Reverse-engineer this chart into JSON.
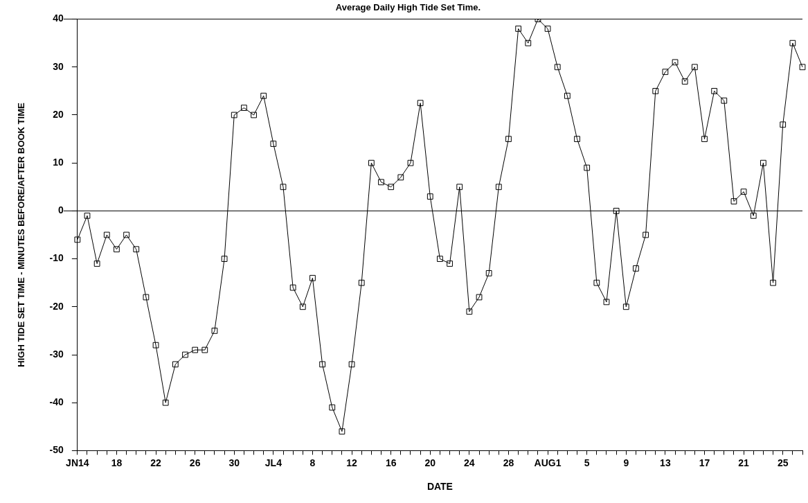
{
  "chart_data": {
    "type": "line",
    "title": "Average Daily High Tide Set Time.",
    "xlabel": "DATE",
    "ylabel": "HIGH TIDE SET TIME - MINUTES BEFORE/AFTER BOOK TIME",
    "categories": [
      "JN14",
      null,
      null,
      null,
      "18",
      null,
      null,
      null,
      "22",
      null,
      null,
      null,
      "26",
      null,
      null,
      null,
      "30",
      null,
      null,
      null,
      "JL4",
      null,
      null,
      null,
      "8",
      null,
      null,
      null,
      "12",
      null,
      null,
      null,
      "16",
      null,
      null,
      null,
      "20",
      null,
      null,
      null,
      "24",
      null,
      null,
      null,
      "28",
      null,
      null,
      null,
      "AUG1",
      null,
      null,
      null,
      "5",
      null,
      null,
      null,
      "9",
      null,
      null,
      null,
      "13",
      null,
      null,
      null,
      "17",
      null,
      null,
      null,
      "21",
      null,
      null,
      null,
      "25",
      null,
      null
    ],
    "series": [
      {
        "color": "#000000",
        "values": [
          -6,
          -1,
          -11,
          -5,
          -8,
          -5,
          -8,
          -18,
          -28,
          -40,
          -32,
          -30,
          -29,
          -29,
          -25,
          -10,
          20,
          21.5,
          20,
          24,
          14,
          5,
          -16,
          -20,
          -14,
          -32,
          -41,
          -46,
          -32,
          -15,
          10,
          6,
          5,
          7,
          10,
          22.5,
          3,
          -10,
          -11,
          5,
          -21,
          -18,
          -13,
          5,
          15,
          38,
          35,
          40,
          38,
          30,
          24,
          15,
          9,
          -15,
          -19,
          0,
          -20,
          -12,
          -5,
          25,
          29,
          31,
          27,
          30,
          15,
          25,
          23,
          2,
          4,
          -1,
          10,
          -15,
          18,
          35,
          30
        ]
      }
    ],
    "ylim": [
      -50,
      40
    ],
    "yticks": [
      -50,
      -40,
      -30,
      -20,
      -10,
      0,
      10,
      20,
      30,
      40
    ],
    "ref_lines": [
      {
        "axis": "y",
        "value": 0
      }
    ],
    "marker": "square",
    "line_style": "solid",
    "grid": false,
    "legend": false
  }
}
